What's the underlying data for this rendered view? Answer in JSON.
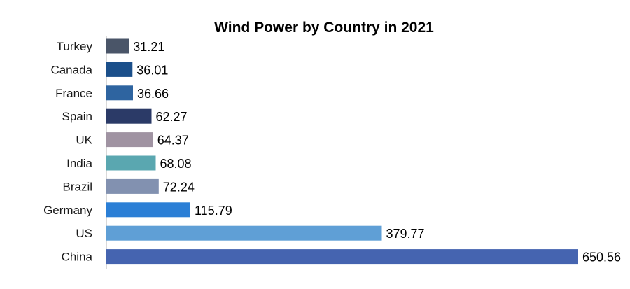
{
  "chart_data": {
    "type": "bar",
    "orientation": "horizontal",
    "title": "Wind Power by Country in 2021",
    "xlabel": "",
    "ylabel": "",
    "categories": [
      "Turkey",
      "Canada",
      "France",
      "Spain",
      "UK",
      "India",
      "Brazil",
      "Germany",
      "US",
      "China"
    ],
    "values": [
      31.21,
      36.01,
      36.66,
      62.27,
      64.37,
      68.08,
      72.24,
      115.79,
      379.77,
      650.56
    ],
    "value_labels": [
      "31.21",
      "36.01",
      "36.66",
      "62.27",
      "64.37",
      "68.08",
      "72.24",
      "115.79",
      "379.77",
      "650.56"
    ],
    "colors": [
      "#4a5568",
      "#1b4f8a",
      "#2e64a0",
      "#2b3a67",
      "#a093a2",
      "#5aa7b0",
      "#8291b0",
      "#2b7fd6",
      "#5f9fd6",
      "#4564b0"
    ],
    "xlim": [
      0,
      650.56
    ],
    "grid": false,
    "legend": "none"
  }
}
